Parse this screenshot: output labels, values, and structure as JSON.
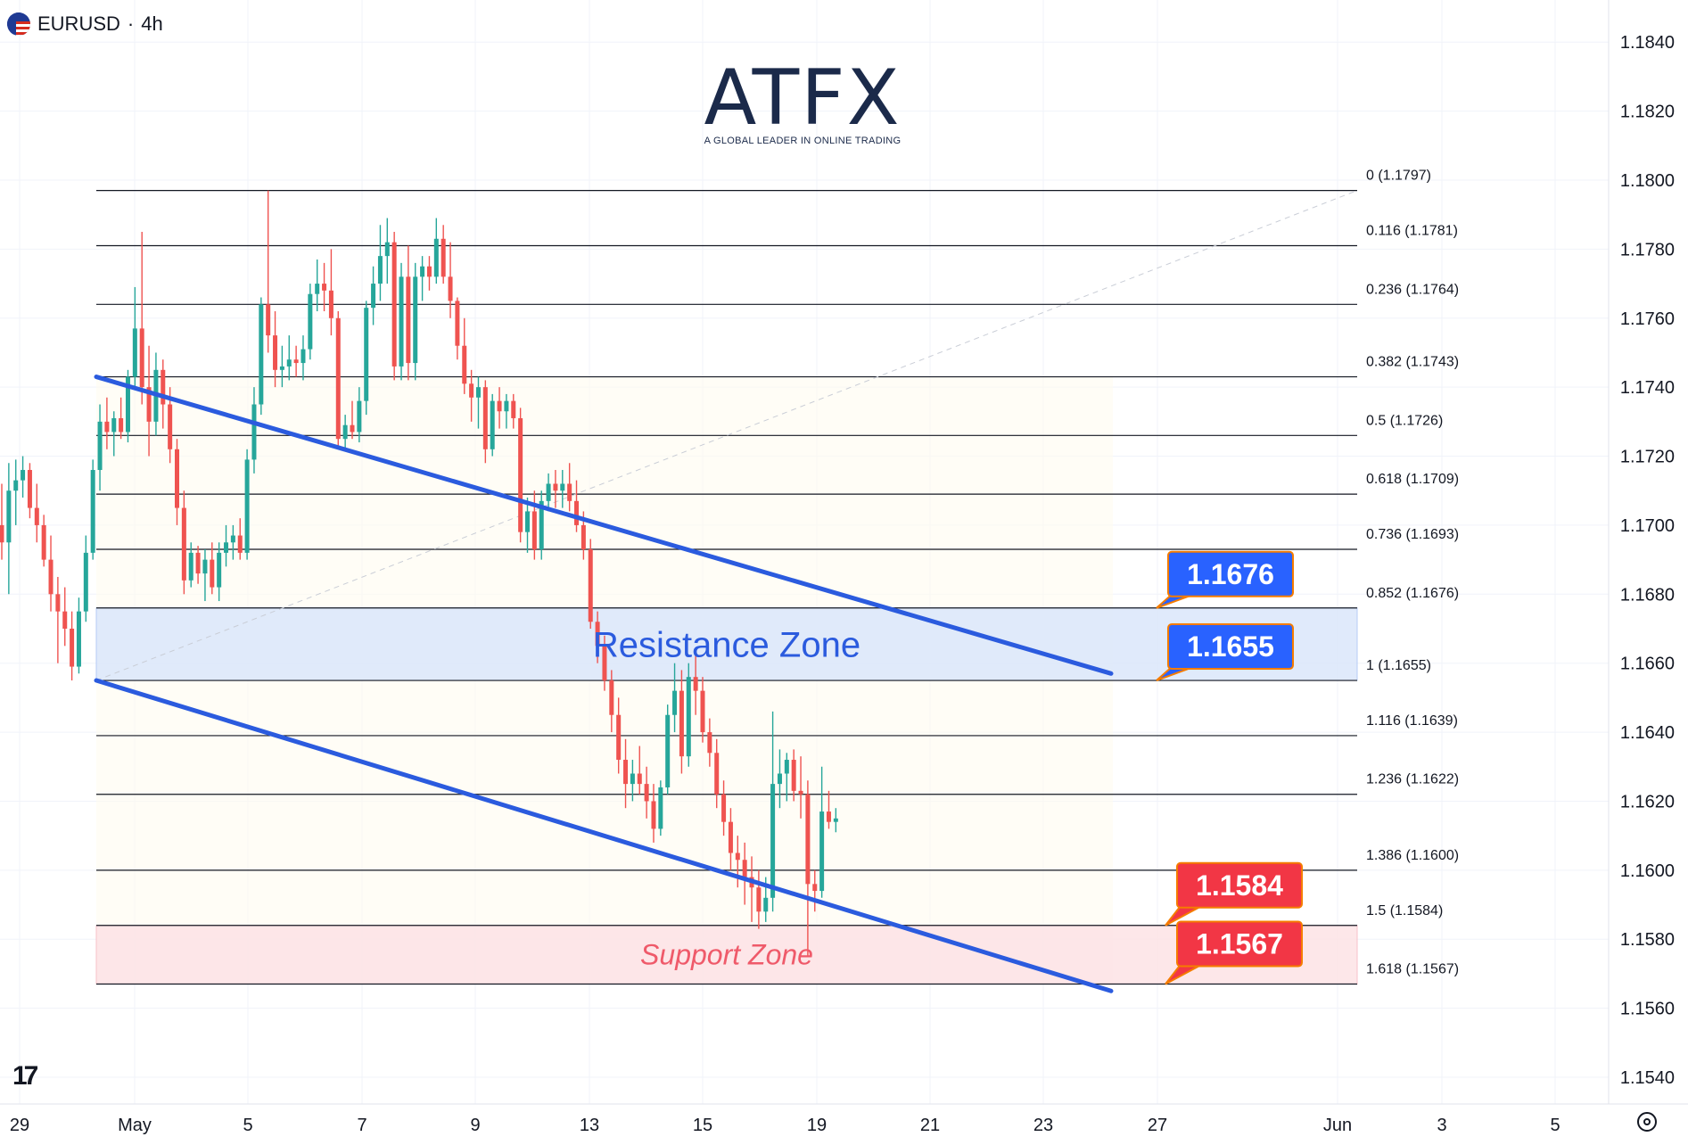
{
  "header": {
    "symbol": "EURUSD",
    "separator": "·",
    "interval": "4h"
  },
  "logo": {
    "name": "ATFX",
    "tagline": "A GLOBAL LEADER IN ONLINE TRADING"
  },
  "colors": {
    "up": "#26a69a",
    "down": "#ef5350",
    "channel": "#2b5bde",
    "resistance_fill": "#dbe7fb",
    "support_fill": "#fde3e6",
    "label_blue": "#2962ff",
    "label_red": "#f23645",
    "label_border": "#f57c00"
  },
  "chart_data": {
    "type": "candlestick",
    "title": "",
    "x_ticks": [
      "29",
      "May",
      "5",
      "7",
      "9",
      "13",
      "15",
      "19",
      "21",
      "23",
      "27",
      "Jun",
      "3",
      "5"
    ],
    "y_ticks": [
      1.184,
      1.182,
      1.18,
      1.178,
      1.176,
      1.174,
      1.172,
      1.17,
      1.168,
      1.166,
      1.164,
      1.162,
      1.16,
      1.158,
      1.156,
      1.154
    ],
    "ylim": [
      1.1532,
      1.1852
    ],
    "fib_levels": [
      {
        "label": "0 (1.1797)",
        "price": 1.1797
      },
      {
        "label": "0.116 (1.1781)",
        "price": 1.1781
      },
      {
        "label": "0.236 (1.1764)",
        "price": 1.1764
      },
      {
        "label": "0.382 (1.1743)",
        "price": 1.1743
      },
      {
        "label": "0.5 (1.1726)",
        "price": 1.1726
      },
      {
        "label": "0.618 (1.1709)",
        "price": 1.1709
      },
      {
        "label": "0.736 (1.1693)",
        "price": 1.1693
      },
      {
        "label": "0.852 (1.1676)",
        "price": 1.1676
      },
      {
        "label": "1 (1.1655)",
        "price": 1.1655
      },
      {
        "label": "1.116 (1.1639)",
        "price": 1.1639
      },
      {
        "label": "1.236 (1.1622)",
        "price": 1.1622
      },
      {
        "label": "1.386 (1.1600)",
        "price": 1.16
      },
      {
        "label": "1.5 (1.1584)",
        "price": 1.1584
      },
      {
        "label": "1.618 (1.1567)",
        "price": 1.1567
      }
    ],
    "zones": [
      {
        "name": "Resistance Zone",
        "low": 1.1655,
        "high": 1.1676
      },
      {
        "name": "Support Zone",
        "low": 1.1567,
        "high": 1.1584
      }
    ],
    "price_labels": [
      {
        "text": "1.1676",
        "price": 1.1676,
        "kind": "resistance"
      },
      {
        "text": "1.1655",
        "price": 1.1655,
        "kind": "resistance"
      },
      {
        "text": "1.1584",
        "price": 1.1584,
        "kind": "support"
      },
      {
        "text": "1.1567",
        "price": 1.1567,
        "kind": "support"
      }
    ],
    "channel": {
      "upper": {
        "start_price": 1.1743,
        "end_price": 1.1657
      },
      "lower": {
        "start_price": 1.1655,
        "end_price": 1.1565
      }
    },
    "candles": [
      {
        "o": 1.17,
        "h": 1.1712,
        "l": 1.169,
        "c": 1.1695
      },
      {
        "o": 1.1695,
        "h": 1.1718,
        "l": 1.168,
        "c": 1.171
      },
      {
        "o": 1.171,
        "h": 1.1719,
        "l": 1.17,
        "c": 1.1713
      },
      {
        "o": 1.1713,
        "h": 1.172,
        "l": 1.1708,
        "c": 1.1716
      },
      {
        "o": 1.1716,
        "h": 1.1718,
        "l": 1.1702,
        "c": 1.1705
      },
      {
        "o": 1.1705,
        "h": 1.1712,
        "l": 1.1695,
        "c": 1.17
      },
      {
        "o": 1.17,
        "h": 1.1703,
        "l": 1.1688,
        "c": 1.169
      },
      {
        "o": 1.169,
        "h": 1.1697,
        "l": 1.1675,
        "c": 1.168
      },
      {
        "o": 1.168,
        "h": 1.1685,
        "l": 1.166,
        "c": 1.1675
      },
      {
        "o": 1.1675,
        "h": 1.1682,
        "l": 1.1665,
        "c": 1.167
      },
      {
        "o": 1.167,
        "h": 1.1675,
        "l": 1.1655,
        "c": 1.1659
      },
      {
        "o": 1.1659,
        "h": 1.1679,
        "l": 1.1657,
        "c": 1.1675
      },
      {
        "o": 1.1675,
        "h": 1.1697,
        "l": 1.1672,
        "c": 1.1692
      },
      {
        "o": 1.1692,
        "h": 1.1719,
        "l": 1.169,
        "c": 1.1716
      },
      {
        "o": 1.1716,
        "h": 1.1735,
        "l": 1.171,
        "c": 1.173
      },
      {
        "o": 1.173,
        "h": 1.1737,
        "l": 1.1722,
        "c": 1.1727
      },
      {
        "o": 1.1727,
        "h": 1.1733,
        "l": 1.172,
        "c": 1.1731
      },
      {
        "o": 1.1731,
        "h": 1.1737,
        "l": 1.1725,
        "c": 1.1727
      },
      {
        "o": 1.1727,
        "h": 1.1745,
        "l": 1.1724,
        "c": 1.1743
      },
      {
        "o": 1.1743,
        "h": 1.1769,
        "l": 1.174,
        "c": 1.1757
      },
      {
        "o": 1.1757,
        "h": 1.1785,
        "l": 1.1735,
        "c": 1.174
      },
      {
        "o": 1.174,
        "h": 1.1752,
        "l": 1.172,
        "c": 1.173
      },
      {
        "o": 1.173,
        "h": 1.175,
        "l": 1.1726,
        "c": 1.1745
      },
      {
        "o": 1.1745,
        "h": 1.1748,
        "l": 1.1728,
        "c": 1.1735
      },
      {
        "o": 1.1735,
        "h": 1.174,
        "l": 1.1718,
        "c": 1.1722
      },
      {
        "o": 1.1722,
        "h": 1.1725,
        "l": 1.17,
        "c": 1.1705
      },
      {
        "o": 1.1705,
        "h": 1.171,
        "l": 1.168,
        "c": 1.1684
      },
      {
        "o": 1.1684,
        "h": 1.1695,
        "l": 1.1682,
        "c": 1.1692
      },
      {
        "o": 1.1692,
        "h": 1.1694,
        "l": 1.1683,
        "c": 1.1686
      },
      {
        "o": 1.1686,
        "h": 1.1693,
        "l": 1.1678,
        "c": 1.169
      },
      {
        "o": 1.169,
        "h": 1.1695,
        "l": 1.168,
        "c": 1.1682
      },
      {
        "o": 1.1682,
        "h": 1.1695,
        "l": 1.1678,
        "c": 1.1692
      },
      {
        "o": 1.1692,
        "h": 1.17,
        "l": 1.1688,
        "c": 1.1695
      },
      {
        "o": 1.1695,
        "h": 1.17,
        "l": 1.169,
        "c": 1.1697
      },
      {
        "o": 1.1697,
        "h": 1.1702,
        "l": 1.169,
        "c": 1.1692
      },
      {
        "o": 1.1692,
        "h": 1.1722,
        "l": 1.169,
        "c": 1.1719
      },
      {
        "o": 1.1719,
        "h": 1.174,
        "l": 1.1715,
        "c": 1.1735
      },
      {
        "o": 1.1735,
        "h": 1.1766,
        "l": 1.1732,
        "c": 1.1764
      },
      {
        "o": 1.1764,
        "h": 1.1797,
        "l": 1.175,
        "c": 1.1755
      },
      {
        "o": 1.1755,
        "h": 1.1762,
        "l": 1.174,
        "c": 1.1745
      },
      {
        "o": 1.1745,
        "h": 1.1752,
        "l": 1.174,
        "c": 1.1746
      },
      {
        "o": 1.1746,
        "h": 1.1755,
        "l": 1.1742,
        "c": 1.1748
      },
      {
        "o": 1.1748,
        "h": 1.1752,
        "l": 1.1743,
        "c": 1.1747
      },
      {
        "o": 1.1747,
        "h": 1.1755,
        "l": 1.1742,
        "c": 1.1751
      },
      {
        "o": 1.1751,
        "h": 1.177,
        "l": 1.1748,
        "c": 1.1767
      },
      {
        "o": 1.1767,
        "h": 1.1777,
        "l": 1.1762,
        "c": 1.177
      },
      {
        "o": 1.177,
        "h": 1.1776,
        "l": 1.1762,
        "c": 1.1768
      },
      {
        "o": 1.1768,
        "h": 1.178,
        "l": 1.1755,
        "c": 1.176
      },
      {
        "o": 1.176,
        "h": 1.1762,
        "l": 1.1722,
        "c": 1.1725
      },
      {
        "o": 1.1725,
        "h": 1.1732,
        "l": 1.1722,
        "c": 1.1729
      },
      {
        "o": 1.1729,
        "h": 1.1736,
        "l": 1.1725,
        "c": 1.1727
      },
      {
        "o": 1.1727,
        "h": 1.174,
        "l": 1.1724,
        "c": 1.1736
      },
      {
        "o": 1.1736,
        "h": 1.1765,
        "l": 1.1732,
        "c": 1.1763
      },
      {
        "o": 1.1763,
        "h": 1.1775,
        "l": 1.1758,
        "c": 1.177
      },
      {
        "o": 1.177,
        "h": 1.1787,
        "l": 1.1765,
        "c": 1.1778
      },
      {
        "o": 1.1778,
        "h": 1.1789,
        "l": 1.177,
        "c": 1.1782
      },
      {
        "o": 1.1782,
        "h": 1.1785,
        "l": 1.1742,
        "c": 1.1746
      },
      {
        "o": 1.1746,
        "h": 1.1776,
        "l": 1.1742,
        "c": 1.1772
      },
      {
        "o": 1.1772,
        "h": 1.1781,
        "l": 1.1742,
        "c": 1.1747
      },
      {
        "o": 1.1747,
        "h": 1.1776,
        "l": 1.1742,
        "c": 1.1772
      },
      {
        "o": 1.1772,
        "h": 1.1778,
        "l": 1.1765,
        "c": 1.1775
      },
      {
        "o": 1.1775,
        "h": 1.1778,
        "l": 1.1768,
        "c": 1.1772
      },
      {
        "o": 1.1772,
        "h": 1.1789,
        "l": 1.177,
        "c": 1.1783
      },
      {
        "o": 1.1783,
        "h": 1.1787,
        "l": 1.177,
        "c": 1.1772
      },
      {
        "o": 1.1772,
        "h": 1.1782,
        "l": 1.176,
        "c": 1.1765
      },
      {
        "o": 1.1765,
        "h": 1.1766,
        "l": 1.1748,
        "c": 1.1752
      },
      {
        "o": 1.1752,
        "h": 1.176,
        "l": 1.1738,
        "c": 1.1741
      },
      {
        "o": 1.1741,
        "h": 1.1745,
        "l": 1.173,
        "c": 1.1737
      },
      {
        "o": 1.1737,
        "h": 1.1743,
        "l": 1.1728,
        "c": 1.174
      },
      {
        "o": 1.174,
        "h": 1.1742,
        "l": 1.1718,
        "c": 1.1722
      },
      {
        "o": 1.1722,
        "h": 1.1738,
        "l": 1.172,
        "c": 1.1736
      },
      {
        "o": 1.1736,
        "h": 1.174,
        "l": 1.1728,
        "c": 1.1733
      },
      {
        "o": 1.1733,
        "h": 1.1738,
        "l": 1.1728,
        "c": 1.1736
      },
      {
        "o": 1.1736,
        "h": 1.1738,
        "l": 1.1728,
        "c": 1.1731
      },
      {
        "o": 1.1731,
        "h": 1.1734,
        "l": 1.1695,
        "c": 1.1698
      },
      {
        "o": 1.1698,
        "h": 1.1708,
        "l": 1.1692,
        "c": 1.1704
      },
      {
        "o": 1.1704,
        "h": 1.171,
        "l": 1.169,
        "c": 1.1693
      },
      {
        "o": 1.1693,
        "h": 1.171,
        "l": 1.169,
        "c": 1.1707
      },
      {
        "o": 1.1707,
        "h": 1.1715,
        "l": 1.1704,
        "c": 1.1712
      },
      {
        "o": 1.1712,
        "h": 1.1716,
        "l": 1.1705,
        "c": 1.171
      },
      {
        "o": 1.171,
        "h": 1.1716,
        "l": 1.1705,
        "c": 1.1712
      },
      {
        "o": 1.1712,
        "h": 1.1718,
        "l": 1.1704,
        "c": 1.1707
      },
      {
        "o": 1.1707,
        "h": 1.1713,
        "l": 1.1698,
        "c": 1.17
      },
      {
        "o": 1.17,
        "h": 1.1704,
        "l": 1.169,
        "c": 1.1693
      },
      {
        "o": 1.1693,
        "h": 1.1696,
        "l": 1.167,
        "c": 1.1672
      },
      {
        "o": 1.1672,
        "h": 1.1675,
        "l": 1.166,
        "c": 1.1665
      },
      {
        "o": 1.1665,
        "h": 1.1668,
        "l": 1.1652,
        "c": 1.1655
      },
      {
        "o": 1.1655,
        "h": 1.1658,
        "l": 1.164,
        "c": 1.1645
      },
      {
        "o": 1.1645,
        "h": 1.165,
        "l": 1.1628,
        "c": 1.1632
      },
      {
        "o": 1.1632,
        "h": 1.1638,
        "l": 1.1618,
        "c": 1.1625
      },
      {
        "o": 1.1625,
        "h": 1.1632,
        "l": 1.162,
        "c": 1.1628
      },
      {
        "o": 1.1628,
        "h": 1.1636,
        "l": 1.1622,
        "c": 1.1625
      },
      {
        "o": 1.1625,
        "h": 1.163,
        "l": 1.1615,
        "c": 1.162
      },
      {
        "o": 1.162,
        "h": 1.1625,
        "l": 1.1608,
        "c": 1.1612
      },
      {
        "o": 1.1612,
        "h": 1.1626,
        "l": 1.161,
        "c": 1.1624
      },
      {
        "o": 1.1624,
        "h": 1.1648,
        "l": 1.1622,
        "c": 1.1645
      },
      {
        "o": 1.1645,
        "h": 1.166,
        "l": 1.164,
        "c": 1.1652
      },
      {
        "o": 1.1652,
        "h": 1.1658,
        "l": 1.1628,
        "c": 1.1633
      },
      {
        "o": 1.1633,
        "h": 1.166,
        "l": 1.163,
        "c": 1.1656
      },
      {
        "o": 1.1656,
        "h": 1.1663,
        "l": 1.1645,
        "c": 1.1652
      },
      {
        "o": 1.1652,
        "h": 1.1656,
        "l": 1.1637,
        "c": 1.164
      },
      {
        "o": 1.164,
        "h": 1.1644,
        "l": 1.163,
        "c": 1.1634
      },
      {
        "o": 1.1634,
        "h": 1.1638,
        "l": 1.1618,
        "c": 1.1622
      },
      {
        "o": 1.1622,
        "h": 1.1626,
        "l": 1.161,
        "c": 1.1614
      },
      {
        "o": 1.1614,
        "h": 1.1618,
        "l": 1.16,
        "c": 1.1605
      },
      {
        "o": 1.1605,
        "h": 1.161,
        "l": 1.1595,
        "c": 1.1603
      },
      {
        "o": 1.1603,
        "h": 1.1608,
        "l": 1.159,
        "c": 1.1598
      },
      {
        "o": 1.1598,
        "h": 1.1604,
        "l": 1.1585,
        "c": 1.1595
      },
      {
        "o": 1.1595,
        "h": 1.16,
        "l": 1.1583,
        "c": 1.1588
      },
      {
        "o": 1.1588,
        "h": 1.1598,
        "l": 1.1585,
        "c": 1.1592
      },
      {
        "o": 1.1592,
        "h": 1.1646,
        "l": 1.1588,
        "c": 1.1625
      },
      {
        "o": 1.1625,
        "h": 1.1635,
        "l": 1.1618,
        "c": 1.1628
      },
      {
        "o": 1.1628,
        "h": 1.1634,
        "l": 1.162,
        "c": 1.1632
      },
      {
        "o": 1.1632,
        "h": 1.1635,
        "l": 1.162,
        "c": 1.1623
      },
      {
        "o": 1.1623,
        "h": 1.1633,
        "l": 1.1615,
        "c": 1.1622
      },
      {
        "o": 1.1622,
        "h": 1.1626,
        "l": 1.1575,
        "c": 1.1596
      },
      {
        "o": 1.1596,
        "h": 1.16,
        "l": 1.1588,
        "c": 1.1594
      },
      {
        "o": 1.1594,
        "h": 1.163,
        "l": 1.1592,
        "c": 1.1617
      },
      {
        "o": 1.1617,
        "h": 1.1623,
        "l": 1.1612,
        "c": 1.1614
      },
      {
        "o": 1.1614,
        "h": 1.1618,
        "l": 1.1611,
        "c": 1.1615
      }
    ]
  }
}
